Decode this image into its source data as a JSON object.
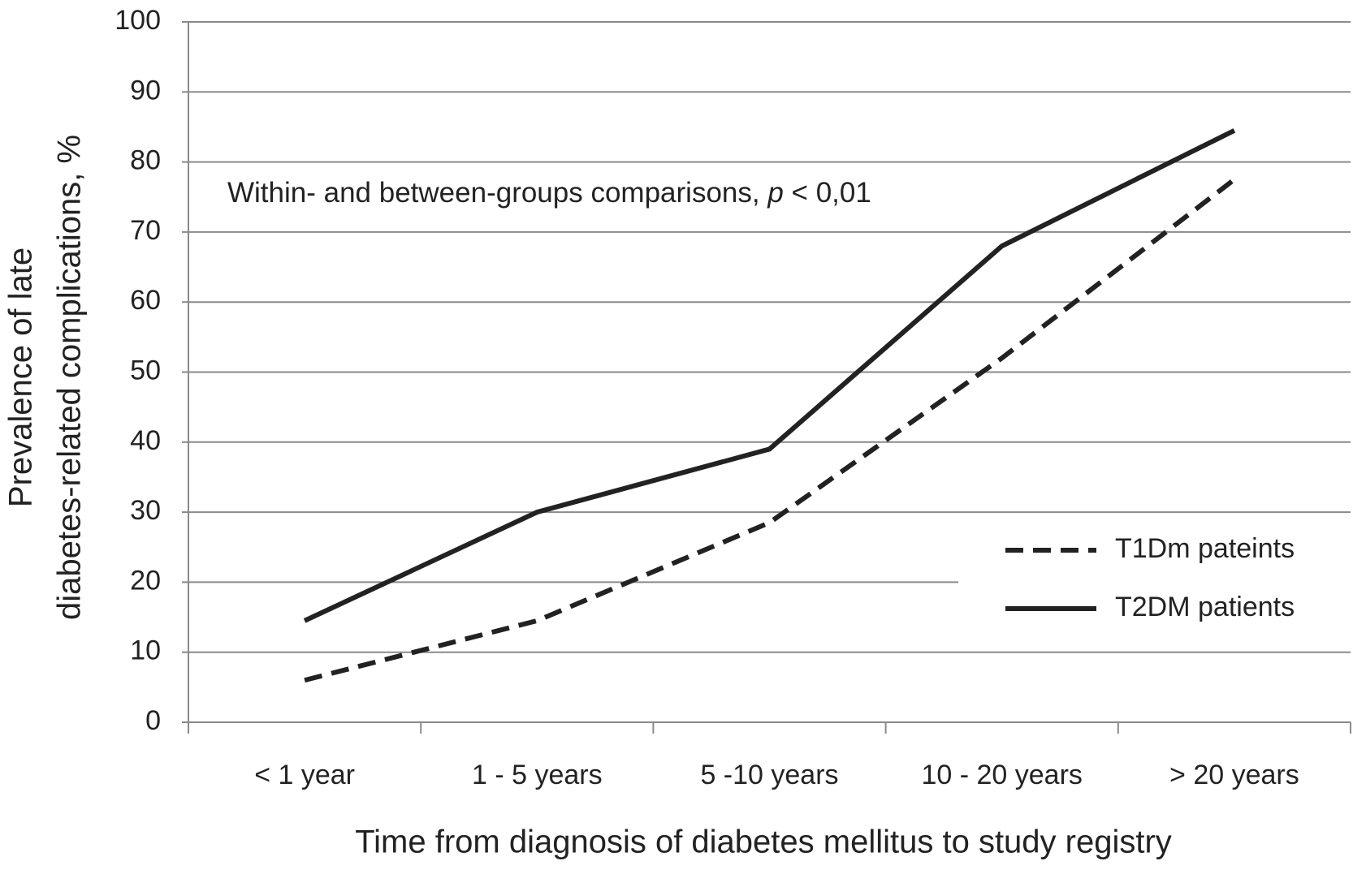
{
  "chart_data": {
    "type": "line",
    "x_label": "Time from diagnosis of diabetes mellitus to study registry",
    "y_label": [
      "Prevalence of late",
      "diabetes-related complications, %"
    ],
    "annotation": [
      "Within- and between-groups comparisons,",
      "p",
      "< 0,01"
    ],
    "categories": [
      "< 1 year",
      "1 - 5 years",
      "5 -10 years",
      "10 - 20 years",
      "> 20 years"
    ],
    "series": [
      {
        "name": "T1Dm pateints",
        "color": "#222222",
        "line_style": "dashed",
        "values": [
          6,
          14.5,
          28.5,
          52,
          77.5
        ]
      },
      {
        "name": "T2DM patients",
        "color": "#222222",
        "line_style": "solid",
        "values": [
          14.5,
          30,
          39,
          68,
          84.5
        ]
      }
    ],
    "ylim": [
      0,
      100
    ],
    "yticks": [
      0,
      10,
      20,
      30,
      40,
      50,
      60,
      70,
      80,
      90,
      100
    ],
    "grid": true,
    "legend_position": "right"
  }
}
